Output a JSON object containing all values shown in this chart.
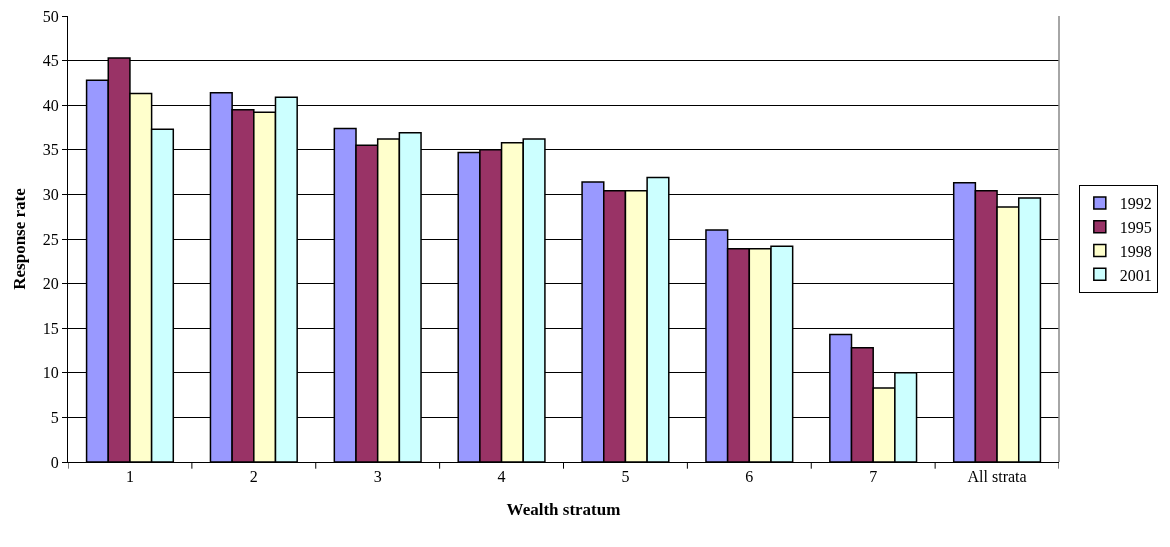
{
  "chart_data": {
    "type": "bar",
    "xlabel": "Wealth stratum",
    "ylabel": "Response rate",
    "categories": [
      "1",
      "2",
      "3",
      "4",
      "5",
      "6",
      "7",
      "All strata"
    ],
    "series": [
      {
        "name": "1992",
        "color": "#9999ff",
        "values": [
          42.8,
          41.4,
          37.4,
          34.7,
          31.4,
          26.0,
          14.3,
          31.3
        ]
      },
      {
        "name": "1995",
        "color": "#993366",
        "values": [
          45.3,
          39.5,
          35.5,
          35.0,
          30.4,
          23.9,
          12.8,
          30.4
        ]
      },
      {
        "name": "1998",
        "color": "#ffffcc",
        "values": [
          41.3,
          39.2,
          36.2,
          35.8,
          30.4,
          23.9,
          8.3,
          28.6
        ]
      },
      {
        "name": "2001",
        "color": "#ccffff",
        "values": [
          37.3,
          40.9,
          36.9,
          36.2,
          31.9,
          24.2,
          10.0,
          29.6
        ]
      }
    ],
    "ylim": [
      0,
      50
    ],
    "yticks": [
      0,
      5,
      10,
      15,
      20,
      25,
      30,
      35,
      40,
      45,
      50
    ],
    "grid": "y",
    "legend": "right"
  }
}
